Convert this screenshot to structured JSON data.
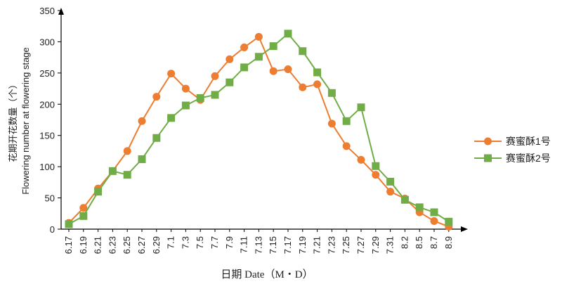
{
  "chart_data": {
    "type": "line",
    "title": "",
    "xlabel": "日期 Date（M・D）",
    "ylabel_line1": "花期开花数量（个）",
    "ylabel_line2": "Flowering number at flowering stage",
    "ylim": [
      0,
      350
    ],
    "y_ticks": [
      "0",
      "50",
      "100",
      "150",
      "200",
      "250",
      "300",
      "350"
    ],
    "categories": [
      "6.17",
      "6.19",
      "6.21",
      "6.23",
      "6.25",
      "6.27",
      "6.29",
      "7.1",
      "7.3",
      "7.5",
      "7.7",
      "7.9",
      "7.11",
      "7.13",
      "7.15",
      "7.17",
      "7.19",
      "7.21",
      "7.23",
      "7.25",
      "7.27",
      "7.29",
      "7.31",
      "8.2",
      "8.5",
      "8.7",
      "8.9"
    ],
    "x_labels": [
      "6.17",
      "6.19",
      "6.21",
      "6.23",
      "6.25",
      "6.27",
      "6.29",
      "7.1",
      "7.3",
      "7.5",
      "7.7",
      "7.9",
      "7.11",
      "7.13",
      "7.15",
      "7.17",
      "7.19",
      "7.21",
      "7.23",
      "7.25",
      "7.27",
      "7.29",
      "7.31",
      "8.2",
      "8.5",
      "8.7",
      "8.9"
    ],
    "legend_position": "right",
    "grid": false,
    "series": [
      {
        "name": "赛蜜酥1号",
        "color": "#ED7D31",
        "marker": "circle",
        "values": [
          10,
          34,
          65,
          93,
          125,
          173,
          212,
          249,
          225,
          207,
          245,
          272,
          291,
          308,
          253,
          256,
          227,
          232,
          169,
          133,
          111,
          87,
          60,
          49,
          27,
          13,
          4
        ]
      },
      {
        "name": "赛蜜酥2号",
        "color": "#70AD47",
        "marker": "square",
        "values": [
          8,
          21,
          60,
          93,
          87,
          112,
          146,
          178,
          198,
          210,
          215,
          235,
          259,
          276,
          293,
          313,
          285,
          251,
          218,
          173,
          195,
          101,
          76,
          47,
          35,
          27,
          12
        ]
      }
    ]
  }
}
